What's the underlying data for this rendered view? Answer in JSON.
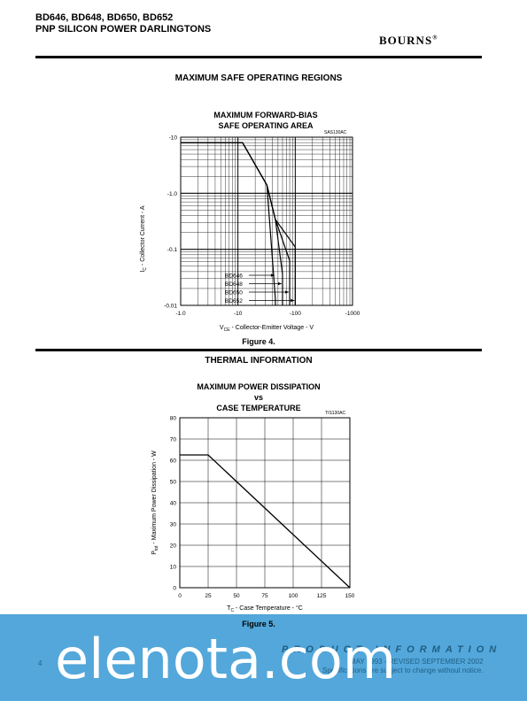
{
  "header": {
    "line1": "BD646, BD648, BD650, BD652",
    "line2": "PNP SILICON POWER DARLINGTONS",
    "logo": "BOURNS",
    "logo_mark": "®"
  },
  "section1": "MAXIMUM SAFE OPERATING REGIONS",
  "section2": "THERMAL INFORMATION",
  "chart_data": [
    {
      "type": "line",
      "title_line1": "MAXIMUM FORWARD-BIAS",
      "title_line2": "SAFE OPERATING AREA",
      "ref": "SAS130AC",
      "xlabel": "V",
      "xlabel_sub": "CE",
      "xlabel_rest": " - Collector-Emitter Voltage - V",
      "ylabel": "I",
      "ylabel_sub": "C",
      "ylabel_rest": " - Collector Current - A",
      "x_scale": "log",
      "y_scale": "log",
      "xlim": [
        -1.0,
        -1000
      ],
      "ylim": [
        -0.01,
        -10
      ],
      "x_ticks": [
        "-1.0",
        "-10",
        "-100",
        "-1000"
      ],
      "y_ticks": [
        "-10",
        "-1.0",
        "-0.1",
        "-0.01"
      ],
      "grid": true,
      "series": [
        {
          "name": "BD646",
          "x": [
            -1.0,
            -12,
            -32,
            -45,
            -45
          ],
          "y": [
            -8,
            -8,
            -1.4,
            -0.013,
            -0.01
          ]
        },
        {
          "name": "BD648",
          "x": [
            -1.0,
            -12,
            -32,
            -45,
            -60,
            -60
          ],
          "y": [
            -8,
            -8,
            -1.4,
            -0.34,
            -0.036,
            -0.01
          ]
        },
        {
          "name": "BD650",
          "x": [
            -1.0,
            -12,
            -32,
            -45,
            -80,
            -80
          ],
          "y": [
            -8,
            -8,
            -1.4,
            -0.34,
            -0.063,
            -0.01
          ]
        },
        {
          "name": "BD652",
          "x": [
            -1.0,
            -12,
            -32,
            -45,
            -100,
            -100
          ],
          "y": [
            -8,
            -8,
            -1.4,
            -0.34,
            -0.11,
            -0.01
          ]
        }
      ],
      "labels": [
        "BD646",
        "BD648",
        "BD650",
        "BD652"
      ],
      "caption": "Figure 4."
    },
    {
      "type": "line",
      "title_line1": "MAXIMUM POWER DISSIPATION",
      "title_line2": "vs",
      "title_line3": "CASE TEMPERATURE",
      "ref": "TIS130AC",
      "xlabel": "T",
      "xlabel_sub": "C",
      "xlabel_rest": " - Case Temperature - °C",
      "ylabel": "P",
      "ylabel_sub": "tot",
      "ylabel_rest": " - Maximum Power Dissipation - W",
      "xlim": [
        0,
        150
      ],
      "ylim": [
        0,
        80
      ],
      "x_ticks": [
        0,
        25,
        50,
        75,
        100,
        125,
        150
      ],
      "y_ticks": [
        0,
        10,
        20,
        30,
        40,
        50,
        60,
        70,
        80
      ],
      "grid": true,
      "series": [
        {
          "x": [
            0,
            25,
            150
          ],
          "y": [
            62.5,
            62.5,
            0
          ]
        }
      ],
      "caption": "Figure 5."
    }
  ],
  "footer": {
    "watermark": "elenota.com",
    "product_info": "PRODUCT INFORMATION",
    "date": "MAY 1993 - REVISED SEPTEMBER 2002",
    "spec": "Specifications are subject to change without notice.",
    "page": "4"
  }
}
